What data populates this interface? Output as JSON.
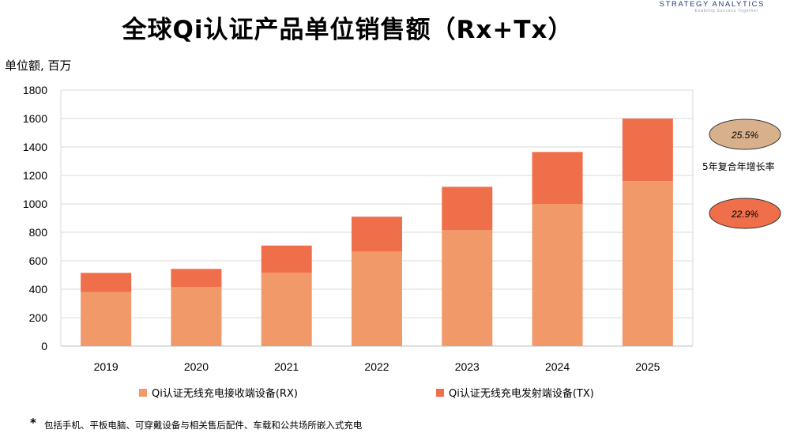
{
  "title": "全球Qi认证产品单位销售额（Rx+Tx）",
  "brand": {
    "name": "STRATEGY ANALYTICS",
    "tagline": "Enabling Success Together"
  },
  "unit_label": "单位额, 百万",
  "cagr": {
    "label": "5年复合年增长率",
    "rx_value": "25.5%",
    "tx_value": "22.9%",
    "rx_color": "#d9b08c",
    "tx_color": "#ef6f4a"
  },
  "legend": {
    "rx": "Qi认证无线充电接收端设备(RX)",
    "tx": "Qi认证无线充电发射端设备(TX)"
  },
  "footnote": {
    "star": "*",
    "text": "包括手机、平板电脑、可穿戴设备与相关售后配件、车载和公共场所嵌入式充电"
  },
  "colors": {
    "rx": "#f2996a",
    "tx": "#ef6f4a",
    "grid": "#d9d9d9"
  },
  "chart_data": {
    "type": "bar",
    "stacked": true,
    "categories": [
      "2019",
      "2020",
      "2021",
      "2022",
      "2023",
      "2024",
      "2025"
    ],
    "series": [
      {
        "name": "Qi认证无线充电接收端设备(RX)",
        "values": [
          380,
          415,
          515,
          665,
          815,
          1000,
          1160
        ]
      },
      {
        "name": "Qi认证无线充电发射端设备(TX)",
        "values": [
          135,
          128,
          192,
          245,
          305,
          365,
          440
        ]
      }
    ],
    "ylabel": "单位额, 百万",
    "ylim": [
      0,
      1800
    ],
    "yticks": [
      "0",
      "200",
      "400",
      "600",
      "800",
      "1000",
      "1200",
      "1400",
      "1600",
      "1800"
    ],
    "grid": true,
    "legend_position": "bottom"
  }
}
